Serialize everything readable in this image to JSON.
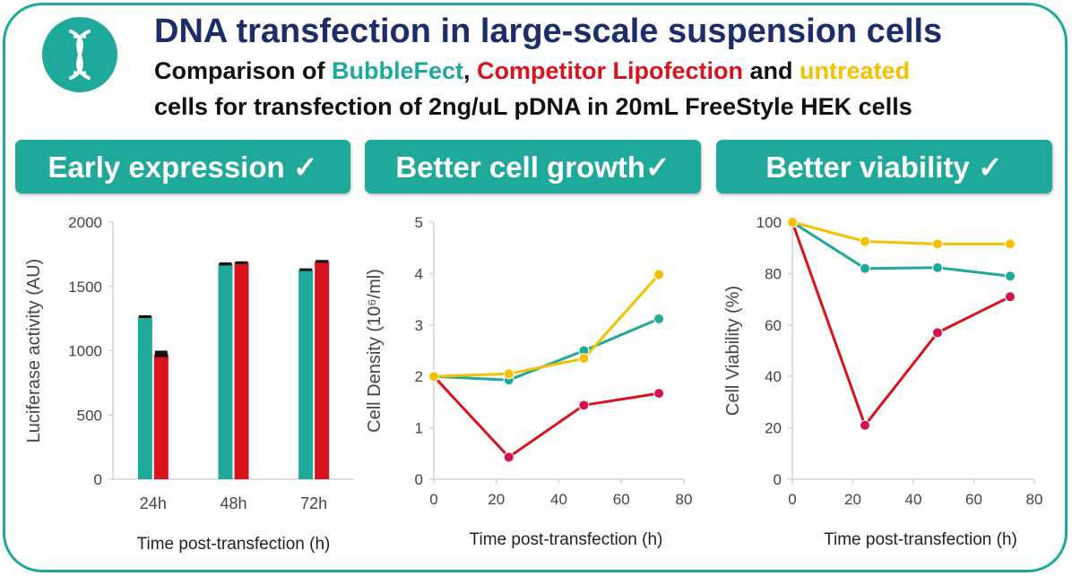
{
  "header": {
    "title": "DNA transfection in large-scale suspension cells",
    "subtitle_line1": {
      "prefix": "Comparison of ",
      "bubblefect": "BubbleFect",
      "comma": ", ",
      "competitor": "Competitor Lipofection",
      "and": " and ",
      "untreated": "untreated"
    },
    "subtitle_line2": "cells for transfection of 2ng/uL pDNA in 20mL FreeStyle HEK cells"
  },
  "icons": {
    "logo": "dna-icon"
  },
  "banners": [
    "Early expression ✓",
    "Better cell growth✓",
    "Better viability ✓"
  ],
  "colors": {
    "brand": "#1fa99a",
    "title": "#1b2e6b",
    "bubblefect": "#1fa99a",
    "competitor": "#d7141e",
    "untreated": "#f5c000",
    "competitor_marker": "#d3124f"
  },
  "chart_data": [
    {
      "type": "bar",
      "categories": [
        "24h",
        "48h",
        "72h"
      ],
      "series": [
        {
          "color": "#1fa99a",
          "values": [
            1265,
            1675,
            1630
          ],
          "errors": [
            10,
            12,
            8
          ]
        },
        {
          "color": "#d7141e",
          "values": [
            975,
            1685,
            1695
          ],
          "errors": [
            25,
            10,
            10
          ]
        }
      ],
      "xlabel": "Time post-transfection (h)",
      "ylabel": "Luciferase activity (AU)",
      "ylim": [
        0,
        2000
      ],
      "yticks": [
        "0",
        "500",
        "1000",
        "1500",
        "2000"
      ],
      "grid": false
    },
    {
      "type": "line",
      "series": [
        {
          "color": "#1fa99a",
          "x": [
            0,
            24,
            48,
            72
          ],
          "y": [
            2.0,
            1.93,
            2.5,
            3.12
          ]
        },
        {
          "color": "#d7141e",
          "x": [
            0,
            24,
            48,
            72
          ],
          "y": [
            2.0,
            0.43,
            1.44,
            1.67
          ]
        },
        {
          "color": "#f5c000",
          "x": [
            0,
            24,
            48,
            72
          ],
          "y": [
            2.0,
            2.05,
            2.35,
            3.98
          ]
        }
      ],
      "xlabel": "Time post-transfection (h)",
      "ylabel": "Cell Density (10⁶/ml)",
      "xlim": [
        0,
        80
      ],
      "ylim": [
        0,
        5
      ],
      "xticks": [
        "0",
        "20",
        "40",
        "60",
        "80"
      ],
      "yticks": [
        "0",
        "1",
        "2",
        "3",
        "4",
        "5"
      ],
      "grid": false
    },
    {
      "type": "line",
      "series": [
        {
          "color": "#1fa99a",
          "x": [
            0,
            24,
            48,
            72
          ],
          "y": [
            100,
            82,
            82.3,
            79
          ]
        },
        {
          "color": "#d7141e",
          "x": [
            0,
            24,
            48,
            72
          ],
          "y": [
            100,
            21,
            57,
            71
          ]
        },
        {
          "color": "#f5c000",
          "x": [
            0,
            24,
            48,
            72
          ],
          "y": [
            100,
            92.5,
            91.5,
            91.5
          ]
        }
      ],
      "xlabel": "Time post-transfection (h)",
      "ylabel": "Cell Viability (%)",
      "xlim": [
        0,
        80
      ],
      "ylim": [
        0,
        100
      ],
      "xticks": [
        "0",
        "20",
        "40",
        "60",
        "80"
      ],
      "yticks": [
        "0",
        "20",
        "40",
        "60",
        "80",
        "100"
      ],
      "grid": false
    }
  ]
}
